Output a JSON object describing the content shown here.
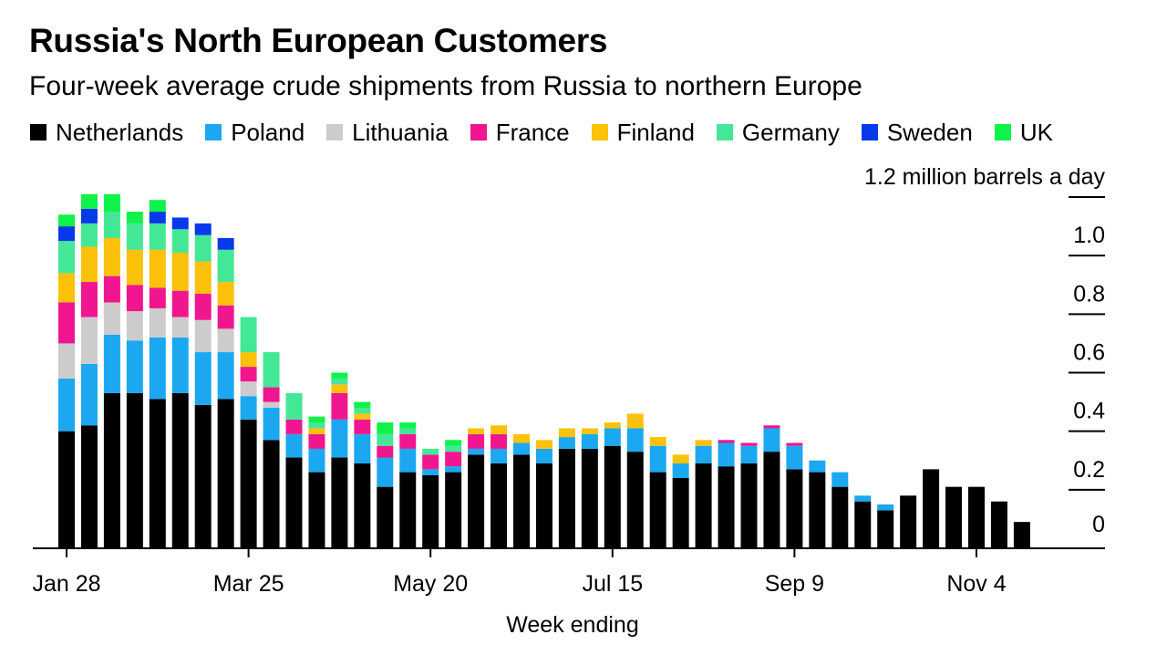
{
  "title": "Russia's North European Customers",
  "subtitle": "Four-week average crude shipments from Russia to northern Europe",
  "chart_data": {
    "type": "bar",
    "stacked": true,
    "title": "Russia's North European Customers",
    "subtitle": "Four-week average crude shipments from Russia to northern Europe",
    "xlabel": "Week ending",
    "ylabel": "1.2 million barrels a day",
    "ylim": [
      0,
      1.2
    ],
    "yticks": [
      {
        "value": 0,
        "label": "0"
      },
      {
        "value": 0.2,
        "label": "0.2"
      },
      {
        "value": 0.4,
        "label": "0.4"
      },
      {
        "value": 0.6,
        "label": "0.6"
      },
      {
        "value": 0.8,
        "label": "0.8"
      },
      {
        "value": 1.0,
        "label": "1.0"
      },
      {
        "value": 1.2,
        "label": "1.2 million barrels a day"
      }
    ],
    "xtick_labels": [
      {
        "index": 0,
        "label": "Jan 28"
      },
      {
        "index": 8,
        "label": "Mar 25"
      },
      {
        "index": 16,
        "label": "May 20"
      },
      {
        "index": 24,
        "label": "Jul 15"
      },
      {
        "index": 32,
        "label": "Sep 9"
      },
      {
        "index": 40,
        "label": "Nov 4"
      }
    ],
    "n_weeks": 43,
    "series": [
      {
        "name": "Netherlands",
        "color": "#000000",
        "values": [
          0.4,
          0.42,
          0.53,
          0.53,
          0.51,
          0.53,
          0.49,
          0.51,
          0.44,
          0.37,
          0.31,
          0.26,
          0.31,
          0.29,
          0.21,
          0.26,
          0.25,
          0.26,
          0.32,
          0.29,
          0.32,
          0.29,
          0.34,
          0.34,
          0.35,
          0.33,
          0.26,
          0.24,
          0.29,
          0.28,
          0.29,
          0.33,
          0.27,
          0.26,
          0.21,
          0.16,
          0.13,
          0.18,
          0.27,
          0.21,
          0.21,
          0.16,
          0.09
        ]
      },
      {
        "name": "Poland",
        "color": "#1ba8f0",
        "values": [
          0.18,
          0.21,
          0.2,
          0.18,
          0.21,
          0.19,
          0.18,
          0.16,
          0.08,
          0.11,
          0.08,
          0.08,
          0.13,
          0.1,
          0.1,
          0.08,
          0.02,
          0.02,
          0.02,
          0.05,
          0.04,
          0.05,
          0.04,
          0.05,
          0.06,
          0.08,
          0.09,
          0.05,
          0.06,
          0.08,
          0.06,
          0.08,
          0.08,
          0.04,
          0.05,
          0.02,
          0.02,
          0,
          0,
          0,
          0,
          0,
          0
        ]
      },
      {
        "name": "Lithuania",
        "color": "#cccccc",
        "values": [
          0.12,
          0.16,
          0.11,
          0.1,
          0.1,
          0.07,
          0.11,
          0.08,
          0.05,
          0.02,
          0,
          0,
          0,
          0,
          0,
          0,
          0,
          0,
          0,
          0,
          0,
          0,
          0,
          0,
          0,
          0,
          0,
          0,
          0,
          0,
          0,
          0,
          0,
          0,
          0,
          0,
          0,
          0,
          0,
          0,
          0,
          0,
          0
        ]
      },
      {
        "name": "France",
        "color": "#f0168f",
        "values": [
          0.14,
          0.12,
          0.09,
          0.09,
          0.07,
          0.09,
          0.09,
          0.08,
          0.05,
          0.05,
          0.05,
          0.05,
          0.09,
          0.05,
          0.04,
          0.05,
          0.05,
          0.05,
          0.05,
          0.05,
          0,
          0,
          0,
          0,
          0,
          0,
          0,
          0,
          0,
          0.01,
          0.01,
          0.01,
          0.01,
          0,
          0,
          0,
          0,
          0,
          0,
          0,
          0,
          0,
          0
        ]
      },
      {
        "name": "Finland",
        "color": "#fcc10b",
        "values": [
          0.1,
          0.12,
          0.13,
          0.12,
          0.13,
          0.13,
          0.11,
          0.08,
          0.05,
          0,
          0,
          0.02,
          0.03,
          0.02,
          0,
          0,
          0,
          0,
          0.02,
          0.03,
          0.03,
          0.03,
          0.03,
          0.02,
          0.02,
          0.05,
          0.03,
          0.03,
          0.02,
          0,
          0,
          0,
          0,
          0,
          0,
          0,
          0,
          0,
          0,
          0,
          0,
          0,
          0
        ]
      },
      {
        "name": "Germany",
        "color": "#44e796",
        "values": [
          0.11,
          0.08,
          0.09,
          0.09,
          0.09,
          0.08,
          0.09,
          0.11,
          0.12,
          0.12,
          0.09,
          0.02,
          0.02,
          0.02,
          0.04,
          0.02,
          0.02,
          0.02,
          0,
          0,
          0,
          0,
          0,
          0,
          0,
          0,
          0,
          0,
          0,
          0,
          0,
          0,
          0,
          0,
          0,
          0,
          0,
          0,
          0,
          0,
          0,
          0,
          0
        ]
      },
      {
        "name": "Sweden",
        "color": "#0739ea",
        "values": [
          0.05,
          0.05,
          0,
          0,
          0.04,
          0.04,
          0.04,
          0.04,
          0,
          0,
          0,
          0,
          0,
          0,
          0,
          0,
          0,
          0,
          0,
          0,
          0,
          0,
          0,
          0,
          0,
          0,
          0,
          0,
          0,
          0,
          0,
          0,
          0,
          0,
          0,
          0,
          0,
          0,
          0,
          0,
          0,
          0,
          0
        ]
      },
      {
        "name": "UK",
        "color": "#0ef24a",
        "values": [
          0.04,
          0.05,
          0.06,
          0.04,
          0.04,
          0,
          0,
          0,
          0,
          0,
          0,
          0.02,
          0.02,
          0.02,
          0.04,
          0.02,
          0,
          0.02,
          0,
          0,
          0,
          0,
          0,
          0,
          0,
          0,
          0,
          0,
          0,
          0,
          0,
          0,
          0,
          0,
          0,
          0,
          0,
          0,
          0,
          0,
          0,
          0,
          0
        ]
      }
    ]
  }
}
